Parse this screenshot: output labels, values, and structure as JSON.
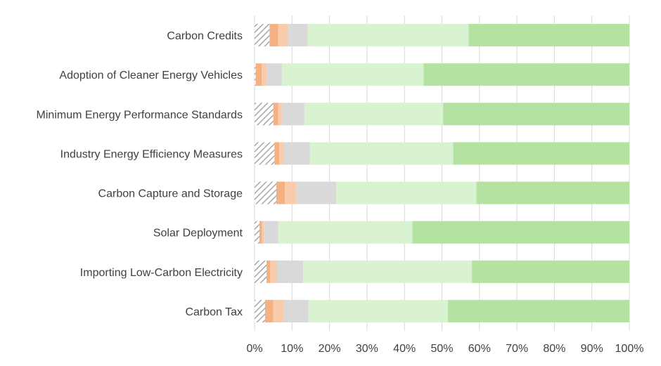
{
  "chart_data": {
    "type": "bar",
    "orientation": "horizontal",
    "stacked": "percent",
    "categories": [
      "Carbon Credits",
      "Adoption of Cleaner Energy Vehicles",
      "Minimum Energy Performance Standards",
      "Industry Energy Efficiency Measures",
      "Carbon Capture and Storage",
      "Solar Deployment",
      "Importing Low-Carbon Electricity",
      "Carbon Tax"
    ],
    "series": [
      {
        "color": "#bfbfbf",
        "pattern": "hatch",
        "values": [
          4.0,
          0.3,
          5.0,
          5.3,
          5.8,
          1.3,
          3.2,
          2.8
        ]
      },
      {
        "color": "#f4b183",
        "values": [
          2.3,
          1.6,
          1.3,
          1.3,
          2.3,
          0.7,
          1.0,
          2.2
        ]
      },
      {
        "color": "#f8cbad",
        "values": [
          2.6,
          1.3,
          1.0,
          1.3,
          3.0,
          0.5,
          1.8,
          2.7
        ]
      },
      {
        "color": "#d9d9d9",
        "values": [
          5.3,
          4.1,
          6.0,
          6.9,
          10.7,
          3.8,
          7.0,
          6.7
        ]
      },
      {
        "color": "#d9f2d0",
        "values": [
          42.9,
          37.8,
          37.0,
          38.2,
          37.4,
          35.8,
          45.0,
          37.2
        ]
      },
      {
        "color": "#b4e2a1",
        "values": [
          42.9,
          54.9,
          49.7,
          47.0,
          40.8,
          57.9,
          42.0,
          48.4
        ]
      }
    ],
    "xlim": [
      0,
      100
    ],
    "xticks": [
      "0%",
      "10%",
      "20%",
      "30%",
      "40%",
      "50%",
      "60%",
      "70%",
      "80%",
      "90%",
      "100%"
    ],
    "grid": true,
    "legend": "none"
  }
}
